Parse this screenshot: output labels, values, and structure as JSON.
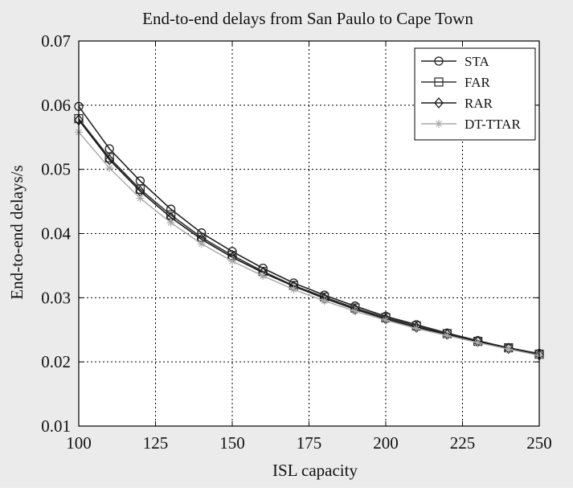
{
  "chart_data": {
    "type": "line",
    "title": "End-to-end delays from San Paulo to Cape Town",
    "xlabel": "ISL capacity",
    "ylabel": "End-to-end delays/s",
    "xlim": [
      100,
      250
    ],
    "ylim": [
      0.01,
      0.07
    ],
    "xticks": [
      100,
      125,
      150,
      175,
      200,
      225,
      250
    ],
    "yticks": [
      0.01,
      0.02,
      0.03,
      0.04,
      0.05,
      0.06,
      0.07
    ],
    "xtick_labels": [
      "100",
      "125",
      "150",
      "175",
      "200",
      "225",
      "250"
    ],
    "ytick_labels": [
      "0.01",
      "0.02",
      "0.03",
      "0.04",
      "0.05",
      "0.06",
      "0.07"
    ],
    "grid": true,
    "legend_position": "top-right",
    "x": [
      100,
      110,
      120,
      130,
      140,
      150,
      160,
      170,
      180,
      190,
      200,
      210,
      220,
      230,
      240,
      250
    ],
    "series": [
      {
        "name": "STA",
        "marker": "circle",
        "color": "#222222",
        "values": [
          0.0598,
          0.0532,
          0.0482,
          0.0438,
          0.0401,
          0.0372,
          0.0346,
          0.0323,
          0.0304,
          0.0287,
          0.0271,
          0.0258,
          0.0245,
          0.0233,
          0.0222,
          0.0213
        ]
      },
      {
        "name": "FAR",
        "marker": "square",
        "color": "#333333",
        "values": [
          0.0579,
          0.0518,
          0.0469,
          0.0429,
          0.0394,
          0.0366,
          0.0341,
          0.0319,
          0.0301,
          0.0284,
          0.0269,
          0.0256,
          0.0244,
          0.0232,
          0.0222,
          0.0212
        ]
      },
      {
        "name": "RAR",
        "marker": "diamond",
        "color": "#1a1a1a",
        "values": [
          0.0577,
          0.0515,
          0.0466,
          0.0425,
          0.0391,
          0.0363,
          0.0339,
          0.0318,
          0.0299,
          0.0282,
          0.0267,
          0.0254,
          0.0243,
          0.0232,
          0.0221,
          0.0211
        ]
      },
      {
        "name": "DT-TTAR",
        "marker": "star",
        "color": "#a8a8a8",
        "values": [
          0.0558,
          0.0502,
          0.0455,
          0.0417,
          0.0384,
          0.0357,
          0.0334,
          0.0313,
          0.0295,
          0.0279,
          0.0265,
          0.0252,
          0.0241,
          0.023,
          0.022,
          0.021
        ]
      }
    ]
  }
}
